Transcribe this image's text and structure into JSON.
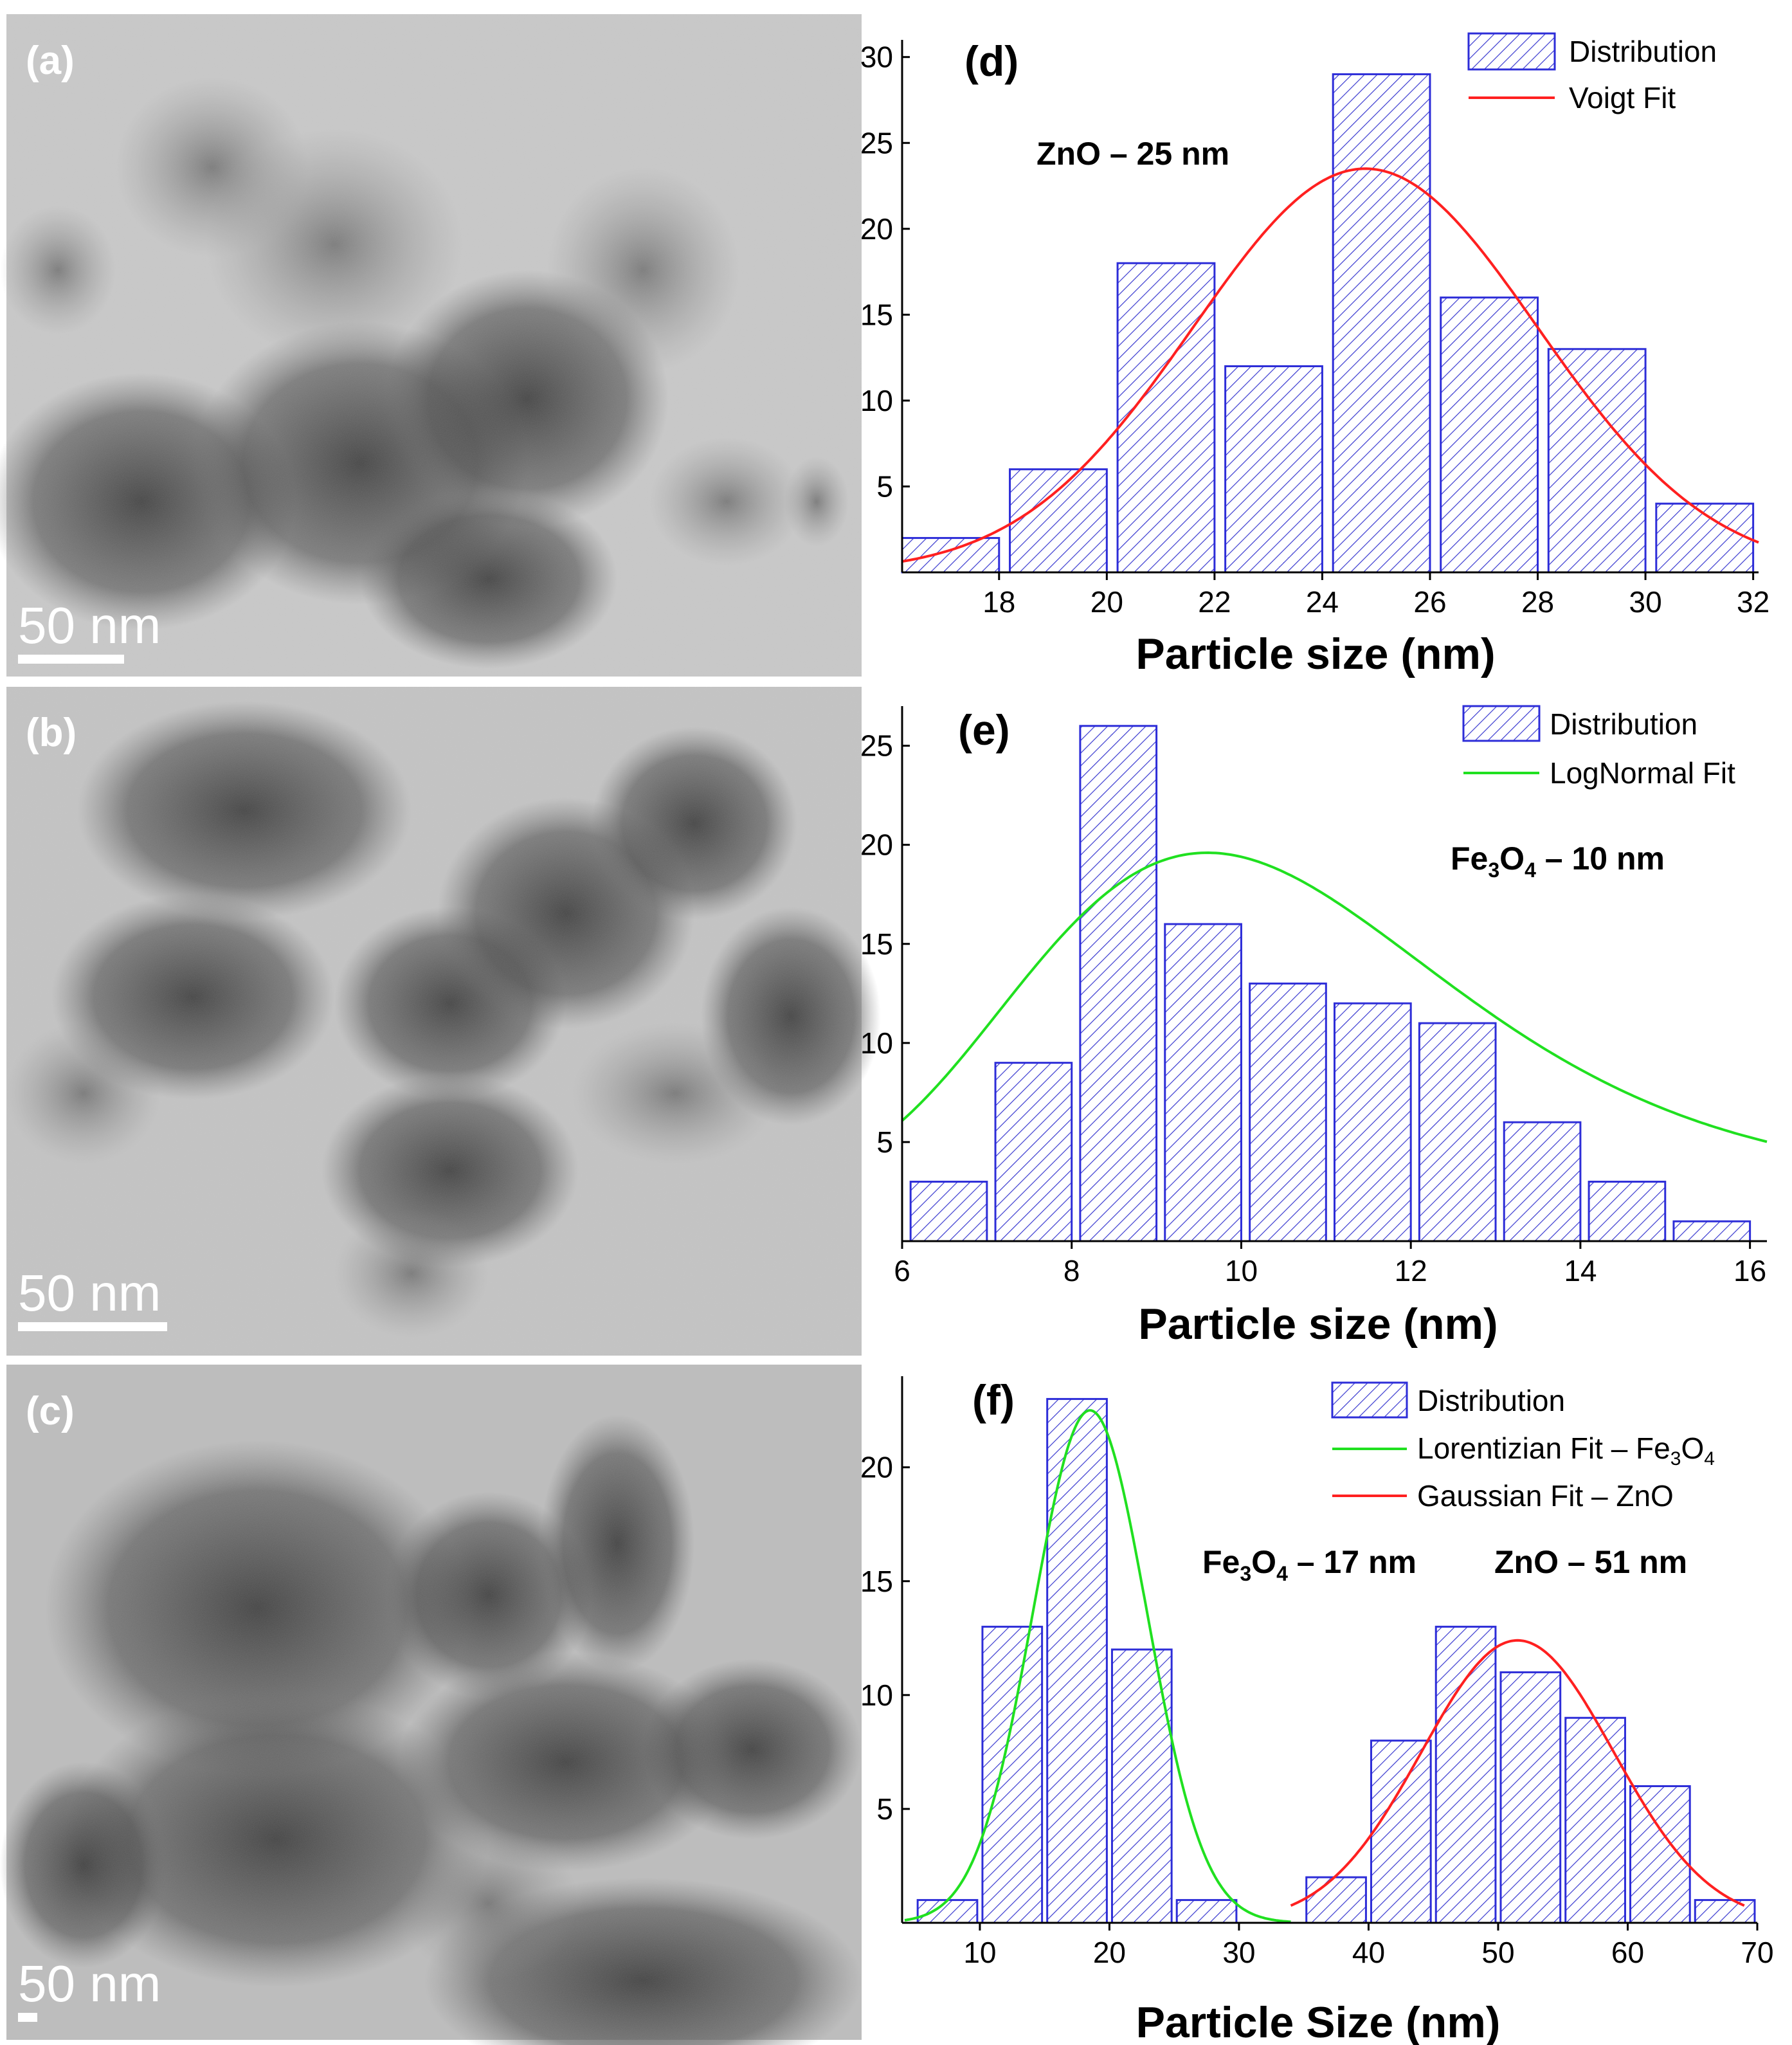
{
  "tem_panels": [
    {
      "label": "(a)",
      "scale_bar": "50 nm"
    },
    {
      "label": "(b)",
      "scale_bar": "50 nm"
    },
    {
      "label": "(c)",
      "scale_bar": "50 nm"
    }
  ],
  "colors": {
    "bar_edge": "#2d2dd8",
    "hatch": "#3a3ad0",
    "voigt": "#ff2020",
    "lognormal": "#20e020",
    "lorentzian": "#20e020",
    "gaussian": "#ff2020",
    "tem_light": "#c7c7c7",
    "tem_dark": "#3a3a3a"
  },
  "chart_data": [
    {
      "type": "bar",
      "panel": "(d)",
      "annotation": "ZnO – 25 nm",
      "xlabel": "Particle size (nm)",
      "ylabel": "",
      "xlim": [
        16.2,
        32.1
      ],
      "ylim": [
        0,
        31
      ],
      "xticks": [
        18,
        20,
        22,
        24,
        26,
        28,
        30,
        32
      ],
      "yticks": [
        5,
        10,
        15,
        20,
        25,
        30
      ],
      "legend_position": "top-right",
      "legend": [
        "Distribution",
        "Voigt Fit"
      ],
      "bins": [
        {
          "x0": 16.2,
          "x1": 18.0,
          "value": 2
        },
        {
          "x0": 18.2,
          "x1": 20.0,
          "value": 6
        },
        {
          "x0": 20.2,
          "x1": 22.0,
          "value": 18
        },
        {
          "x0": 22.2,
          "x1": 24.0,
          "value": 12
        },
        {
          "x0": 24.2,
          "x1": 26.0,
          "value": 29
        },
        {
          "x0": 26.2,
          "x1": 28.0,
          "value": 16
        },
        {
          "x0": 28.2,
          "x1": 30.0,
          "value": 13
        },
        {
          "x0": 30.2,
          "x1": 32.0,
          "value": 4
        }
      ],
      "fits": [
        {
          "name": "Voigt Fit",
          "kind": "gaussian",
          "center": 24.8,
          "sigma": 3.2,
          "amplitude": 23.5,
          "baseline": 0,
          "x_range": [
            16.2,
            32.1
          ],
          "color": "#ff2020"
        }
      ]
    },
    {
      "type": "bar",
      "panel": "(e)",
      "annotation_main": "Fe",
      "annotation_sub1": "3",
      "annotation_mid": "O",
      "annotation_sub2": "4",
      "annotation_tail": " – 10 nm",
      "xlabel": "Particle size (nm)",
      "ylabel": "",
      "xlim": [
        6,
        16.2
      ],
      "ylim": [
        0,
        27
      ],
      "xticks": [
        6,
        8,
        10,
        12,
        14,
        16
      ],
      "yticks": [
        5,
        10,
        15,
        20,
        25
      ],
      "legend_position": "top-right",
      "legend": [
        "Distribution",
        "LogNormal Fit"
      ],
      "bins": [
        {
          "x0": 6.1,
          "x1": 7.0,
          "value": 3
        },
        {
          "x0": 7.1,
          "x1": 8.0,
          "value": 9
        },
        {
          "x0": 8.1,
          "x1": 9.0,
          "value": 26
        },
        {
          "x0": 9.1,
          "x1": 10.0,
          "value": 16
        },
        {
          "x0": 10.1,
          "x1": 11.0,
          "value": 13
        },
        {
          "x0": 11.1,
          "x1": 12.0,
          "value": 12
        },
        {
          "x0": 12.1,
          "x1": 13.0,
          "value": 11
        },
        {
          "x0": 13.1,
          "x1": 14.0,
          "value": 6
        },
        {
          "x0": 14.1,
          "x1": 15.0,
          "value": 3
        },
        {
          "x0": 15.1,
          "x1": 16.0,
          "value": 1
        }
      ],
      "fits": [
        {
          "name": "LogNormal Fit",
          "kind": "lognormal",
          "mode": 9.6,
          "w": 0.26,
          "amplitude": 16.8,
          "baseline": 2.8,
          "x_range": [
            6,
            16.2
          ],
          "color": "#20e020"
        }
      ]
    },
    {
      "type": "bar",
      "panel": "(f)",
      "annotation_fe": "Fe",
      "annotation_fe_sub1": "3",
      "annotation_fe_mid": "O",
      "annotation_fe_sub2": "4",
      "annotation_fe_tail": " – 17 nm",
      "annotation_zno": "ZnO – 51 nm",
      "xlabel": "Particle Size (nm)",
      "ylabel": "",
      "xlim": [
        4,
        70
      ],
      "ylim": [
        0,
        24
      ],
      "xticks": [
        10,
        20,
        30,
        40,
        50,
        60,
        70
      ],
      "yticks": [
        5,
        10,
        15,
        20
      ],
      "legend_position": "top-right",
      "legend": [
        "Distribution",
        "Lorentizian Fit – Fe",
        "Gaussian Fit – ZnO"
      ],
      "legend_fe_sub1": "3",
      "legend_fe_mid": "O",
      "legend_fe_sub2": "4",
      "bins": [
        {
          "x0": 5.2,
          "x1": 9.8,
          "value": 1
        },
        {
          "x0": 10.2,
          "x1": 14.8,
          "value": 13
        },
        {
          "x0": 15.2,
          "x1": 19.8,
          "value": 23
        },
        {
          "x0": 20.2,
          "x1": 24.8,
          "value": 12
        },
        {
          "x0": 25.2,
          "x1": 29.8,
          "value": 1
        },
        {
          "x0": 35.2,
          "x1": 39.8,
          "value": 2
        },
        {
          "x0": 40.2,
          "x1": 44.8,
          "value": 8
        },
        {
          "x0": 45.2,
          "x1": 49.8,
          "value": 13
        },
        {
          "x0": 50.2,
          "x1": 54.8,
          "value": 11
        },
        {
          "x0": 55.2,
          "x1": 59.8,
          "value": 9
        },
        {
          "x0": 60.2,
          "x1": 64.8,
          "value": 6
        },
        {
          "x0": 65.2,
          "x1": 69.8,
          "value": 1
        }
      ],
      "fits": [
        {
          "name": "Lorentizian Fit – Fe3O4",
          "kind": "gaussian",
          "center": 18.5,
          "sigma": 4.4,
          "amplitude": 22.5,
          "baseline": 0,
          "x_range": [
            4.2,
            34
          ],
          "color": "#20e020"
        },
        {
          "name": "Gaussian Fit – ZnO",
          "kind": "gaussian",
          "center": 51.5,
          "sigma": 7.4,
          "amplitude": 12.4,
          "baseline": 0,
          "x_range": [
            34,
            69
          ],
          "color": "#ff2020"
        }
      ]
    }
  ]
}
